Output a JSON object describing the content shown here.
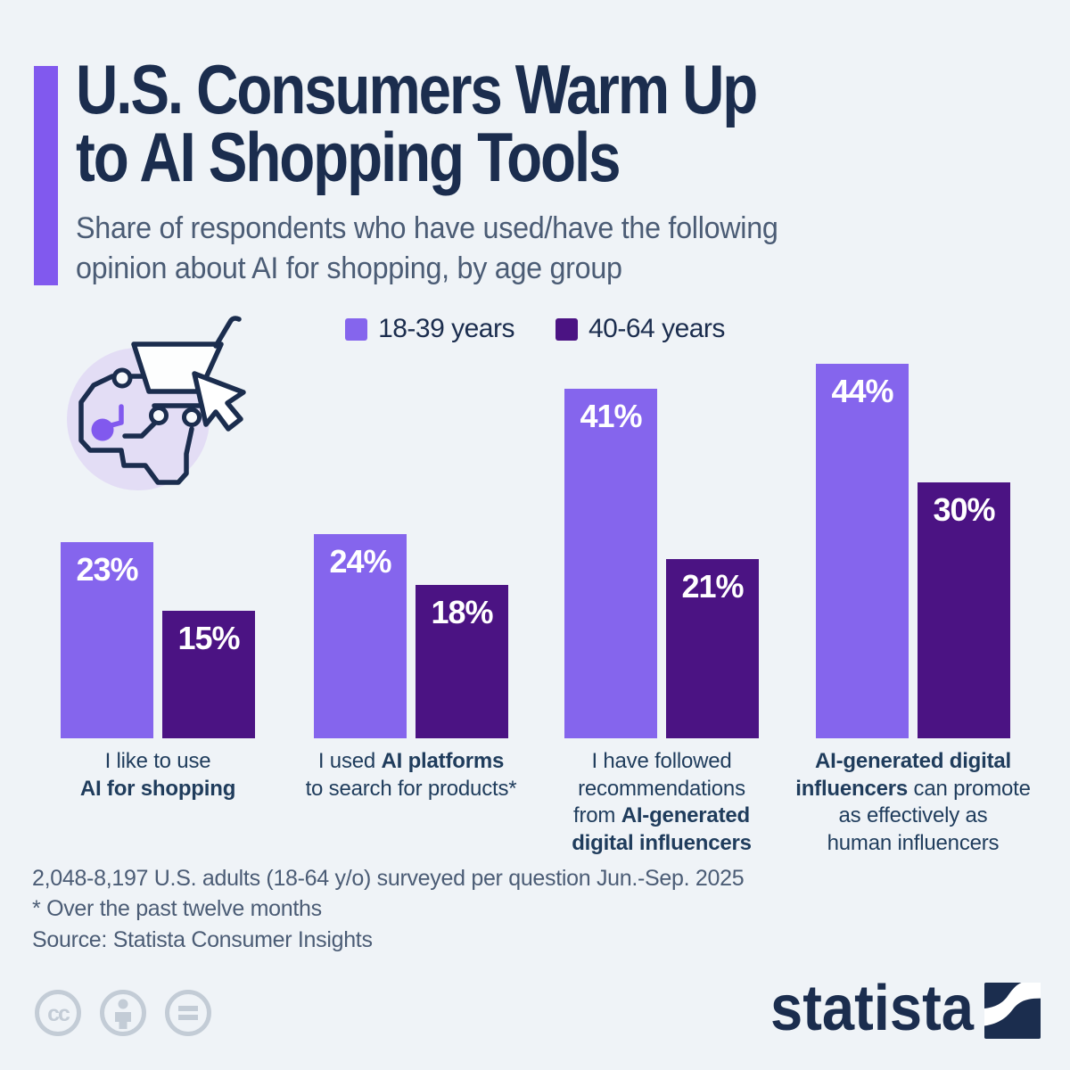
{
  "title": {
    "line1": "U.S. Consumers Warm Up",
    "line2": "to AI Shopping Tools"
  },
  "subtitle": {
    "line1": "Share of respondents who have used/have the following",
    "line2": "opinion about AI for shopping, by age group"
  },
  "legend": [
    {
      "label": "18-39 years",
      "color": "#8565ed"
    },
    {
      "label": "40-64 years",
      "color": "#4b1383"
    }
  ],
  "icon": {
    "name": "brain-circuit-with-shopping-basket-and-cursor"
  },
  "chart_data": {
    "type": "bar",
    "title": "U.S. Consumers Warm Up to AI Shopping Tools",
    "subtitle": "Share of respondents who have used/have the following opinion about AI for shopping, by age group",
    "categories": [
      "I like to use AI for shopping",
      "I used AI platforms to search for products*",
      "I have followed recommendations from AI-generated digital influencers",
      "AI-generated digital influencers can promote as effectively as human influencers"
    ],
    "series": [
      {
        "name": "18-39 years",
        "color": "#8565ed",
        "values": [
          23,
          24,
          41,
          44
        ]
      },
      {
        "name": "40-64 years",
        "color": "#4b1383",
        "values": [
          15,
          18,
          21,
          30
        ]
      }
    ],
    "value_suffix": "%",
    "ylim": [
      0,
      46
    ],
    "grid": false,
    "legend_position": "top",
    "value_labels": "inside-top",
    "category_label_lines": [
      [
        [
          {
            "text": "I like to use",
            "bold": false
          }
        ],
        [
          {
            "text": "AI for shopping",
            "bold": true
          }
        ]
      ],
      [
        [
          {
            "text": "I used ",
            "bold": false
          },
          {
            "text": "AI platforms",
            "bold": true
          }
        ],
        [
          {
            "text": "to search for products*",
            "bold": false
          }
        ]
      ],
      [
        [
          {
            "text": "I have followed",
            "bold": false
          }
        ],
        [
          {
            "text": "recommendations",
            "bold": false
          }
        ],
        [
          {
            "text": "from ",
            "bold": false
          },
          {
            "text": "AI-generated",
            "bold": true
          }
        ],
        [
          {
            "text": "digital influencers",
            "bold": true
          }
        ]
      ],
      [
        [
          {
            "text": "AI-generated digital",
            "bold": true
          }
        ],
        [
          {
            "text": "influencers",
            "bold": true
          },
          {
            "text": " can promote",
            "bold": false
          }
        ],
        [
          {
            "text": "as effectively as",
            "bold": false
          }
        ],
        [
          {
            "text": "human influencers",
            "bold": false
          }
        ]
      ]
    ]
  },
  "footer": {
    "note1": "2,048-8,197 U.S. adults (18-64 y/o) surveyed per question Jun.-Sep. 2025",
    "note2": "* Over the past twelve months",
    "source": "Source: Statista Consumer Insights",
    "license_icons": [
      "cc-icon",
      "attribution-person-icon",
      "equals-icon"
    ]
  },
  "branding": {
    "logo_text": "statista"
  },
  "colors": {
    "background": "#eff3f7",
    "accent_purple": "#8159ee",
    "series_light": "#8565ed",
    "series_dark": "#4b1383",
    "navy": "#1b2d4e",
    "text_muted": "#4b5c75",
    "category_text": "#1f3c5c",
    "icon_circle": "#e3ddf5",
    "license_gray": "#c3ccd6"
  }
}
